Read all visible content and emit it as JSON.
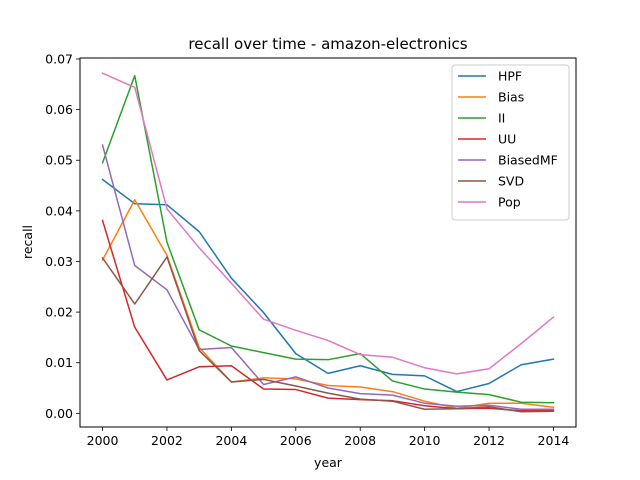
{
  "chart_data": {
    "type": "line",
    "title": "recall over time - amazon-electronics",
    "xlabel": "year",
    "ylabel": "recall",
    "xlim": [
      1999.3,
      2014.7
    ],
    "ylim": [
      -0.0027,
      0.0702
    ],
    "xticks": [
      "2000",
      "2002",
      "2004",
      "2006",
      "2008",
      "2010",
      "2012",
      "2014"
    ],
    "yticks": [
      "0.00",
      "0.01",
      "0.02",
      "0.03",
      "0.04",
      "0.05",
      "0.06",
      "0.07"
    ],
    "grid": false,
    "legend_position": "top-right",
    "x": [
      2000,
      2001,
      2002,
      2003,
      2004,
      2005,
      2006,
      2007,
      2008,
      2009,
      2010,
      2011,
      2012,
      2013,
      2014
    ],
    "series": [
      {
        "name": "HPF",
        "color": "#1f77b4",
        "values": [
          0.0462,
          0.0414,
          0.0412,
          0.0359,
          0.0267,
          0.0199,
          0.0118,
          0.0079,
          0.0094,
          0.0077,
          0.0074,
          0.0043,
          0.0059,
          0.0096,
          0.0107
        ]
      },
      {
        "name": "Bias",
        "color": "#ff7f0e",
        "values": [
          0.0303,
          0.0422,
          0.0312,
          0.013,
          0.0062,
          0.007,
          0.0068,
          0.0055,
          0.0052,
          0.0043,
          0.0024,
          0.001,
          0.002,
          0.002,
          0.0012
        ]
      },
      {
        "name": "II",
        "color": "#2ca02c",
        "values": [
          0.0495,
          0.0667,
          0.0338,
          0.0165,
          0.0133,
          0.012,
          0.0107,
          0.0106,
          0.0118,
          0.0064,
          0.0048,
          0.0042,
          0.0037,
          0.0022,
          0.0021
        ]
      },
      {
        "name": "UU",
        "color": "#d62728",
        "values": [
          0.0381,
          0.017,
          0.0066,
          0.0092,
          0.0094,
          0.0048,
          0.0047,
          0.003,
          0.0027,
          0.0025,
          0.0015,
          0.0009,
          0.001,
          0.0005,
          0.0005
        ]
      },
      {
        "name": "BiasedMF",
        "color": "#9467bd",
        "values": [
          0.053,
          0.0292,
          0.0244,
          0.0126,
          0.013,
          0.0057,
          0.0072,
          0.005,
          0.0039,
          0.0036,
          0.002,
          0.0014,
          0.0016,
          0.0008,
          0.0008
        ]
      },
      {
        "name": "SVD",
        "color": "#8c564b",
        "values": [
          0.0307,
          0.0216,
          0.0309,
          0.0124,
          0.0062,
          0.0067,
          0.0054,
          0.004,
          0.0028,
          0.0024,
          0.0008,
          0.0009,
          0.0013,
          0.0003,
          0.0004
        ]
      },
      {
        "name": "Pop",
        "color": "#e377c2",
        "values": [
          0.0672,
          0.0644,
          0.0404,
          0.0327,
          0.0257,
          0.0186,
          0.0164,
          0.0144,
          0.0116,
          0.0111,
          0.009,
          0.0078,
          0.0088,
          0.0138,
          0.019
        ]
      }
    ]
  }
}
